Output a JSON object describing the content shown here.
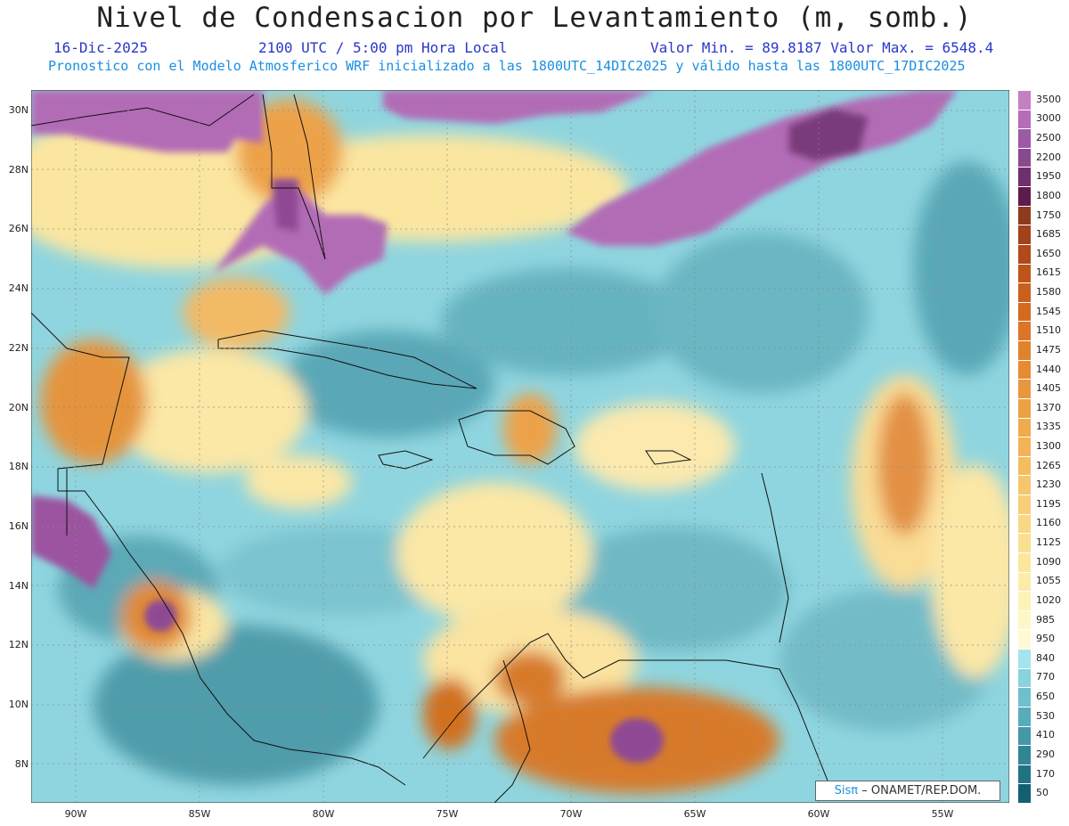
{
  "header": {
    "title": "Nivel de Condensacion por Levantamiento (m, somb.)",
    "date": "16-Dic-2025",
    "time": "2100 UTC / 5:00 pm Hora Local",
    "minmax": "Valor Min. = 89.8187  Valor Max. = 6548.4",
    "model_line": "Pronostico con el Modelo Atmosferico WRF inicializado a las 1800UTC_14DIC2025 y válido hasta las  1800UTC_17DIC2025"
  },
  "axes": {
    "lat_ticks": [
      "30N",
      "28N",
      "26N",
      "24N",
      "22N",
      "20N",
      "18N",
      "16N",
      "14N",
      "12N",
      "10N",
      "8N"
    ],
    "lon_ticks": [
      "90W",
      "85W",
      "80W",
      "75W",
      "70W",
      "65W",
      "60W",
      "55W"
    ]
  },
  "legend": {
    "levels": [
      "3500",
      "3000",
      "2500",
      "2200",
      "1950",
      "1800",
      "1750",
      "1685",
      "1650",
      "1615",
      "1580",
      "1545",
      "1510",
      "1475",
      "1440",
      "1405",
      "1370",
      "1335",
      "1300",
      "1265",
      "1230",
      "1195",
      "1160",
      "1125",
      "1090",
      "1055",
      "1020",
      "985",
      "950",
      "840",
      "770",
      "650",
      "530",
      "410",
      "290",
      "170",
      "50"
    ],
    "colors": [
      "#c57fc4",
      "#b56db8",
      "#9c5aa5",
      "#884a8f",
      "#6f2f6e",
      "#5e1c4e",
      "#8d3a1f",
      "#a2421b",
      "#b04a1a",
      "#bd5519",
      "#c9601c",
      "#d26b21",
      "#da7626",
      "#e0812c",
      "#e58c33",
      "#e9973b",
      "#eca243",
      "#efab4c",
      "#f2b456",
      "#f4bd61",
      "#f6c66c",
      "#f8cf78",
      "#f9d784",
      "#fadf90",
      "#fbe69c",
      "#fcecaa",
      "#fdf2b8",
      "#fef7c6",
      "#fefbd4",
      "#a4e4ec",
      "#8ad2dd",
      "#70bfcc",
      "#58abbb",
      "#4398a9",
      "#318597",
      "#227285",
      "#155f73"
    ]
  },
  "credit": {
    "brand": "Sisπ",
    "text": "– ONAMET/REP.DOM."
  }
}
